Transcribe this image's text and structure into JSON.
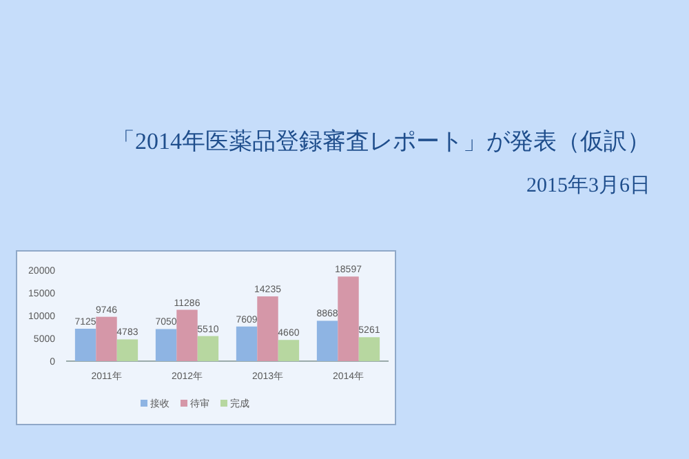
{
  "chart_data": {
    "type": "bar",
    "title": "「2014年医薬品登録審査レポート」が発表（仮訳）",
    "subtitle": "2015年3月6日",
    "categories": [
      "2011年",
      "2012年",
      "2013年",
      "2014年"
    ],
    "series": [
      {
        "name": "接收",
        "color": "#8eb4e3",
        "values": [
          7125,
          7050,
          7609,
          8868
        ]
      },
      {
        "name": "待审",
        "color": "#d597a8",
        "values": [
          9746,
          11286,
          14235,
          18597
        ]
      },
      {
        "name": "完成",
        "color": "#b7d7a0",
        "values": [
          4783,
          5510,
          4660,
          5261
        ]
      }
    ],
    "ylim": [
      0,
      20000
    ],
    "yticks": [
      0,
      5000,
      10000,
      15000,
      20000
    ],
    "data_labels": true,
    "legend": "bottom",
    "grid": false
  }
}
